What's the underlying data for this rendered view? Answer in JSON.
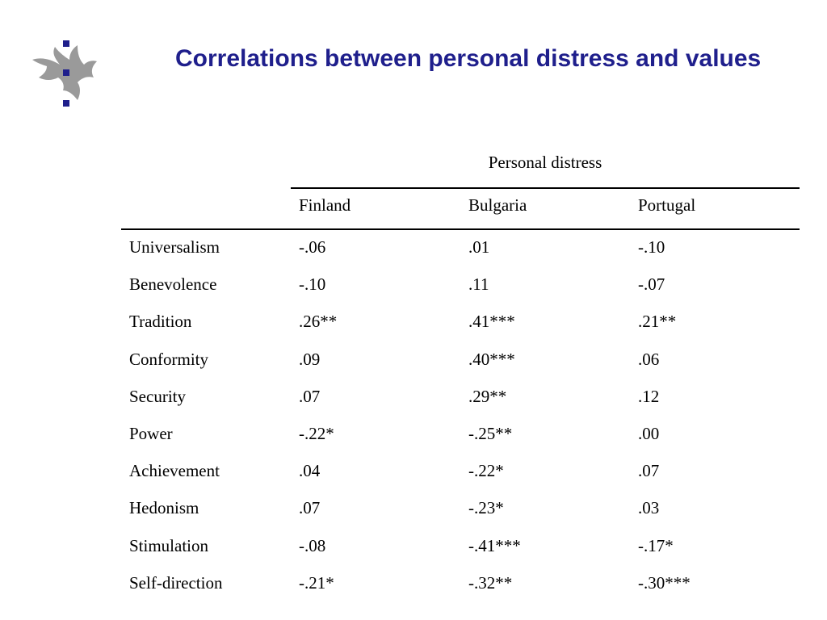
{
  "title": "Correlations between personal distress and values",
  "logo": {
    "icon": "university-flame-logo-icon",
    "color": "#9a9a9a",
    "dot_color": "#1f1f8c"
  },
  "table": {
    "super_header": "Personal distress",
    "columns": [
      "",
      "Finland",
      "Bulgaria",
      "Portugal"
    ],
    "rows": [
      {
        "label": "Universalism",
        "values": [
          "-.06",
          ".01",
          "-.10"
        ]
      },
      {
        "label": "Benevolence",
        "values": [
          "-.10",
          ".11",
          "-.07"
        ]
      },
      {
        "label": "Tradition",
        "values": [
          ".26**",
          ".41***",
          ".21**"
        ]
      },
      {
        "label": "Conformity",
        "values": [
          ".09",
          ".40***",
          ".06"
        ]
      },
      {
        "label": "Security",
        "values": [
          ".07",
          ".29**",
          ".12"
        ]
      },
      {
        "label": "Power",
        "values": [
          "-.22*",
          "-.25**",
          ".00"
        ]
      },
      {
        "label": "Achievement",
        "values": [
          ".04",
          "-.22*",
          ".07"
        ]
      },
      {
        "label": "Hedonism",
        "values": [
          ".07",
          "-.23*",
          ".03"
        ]
      },
      {
        "label": "Stimulation",
        "values": [
          "-.08",
          "-.41***",
          "-.17*"
        ]
      },
      {
        "label": "Self-direction",
        "values": [
          "-.21*",
          "-.32**",
          "-.30***"
        ]
      }
    ]
  }
}
